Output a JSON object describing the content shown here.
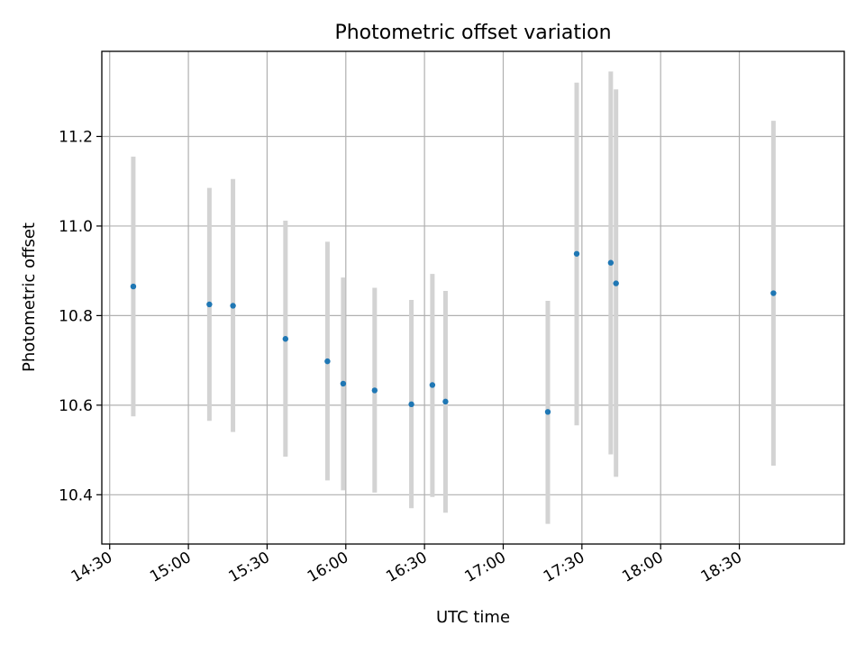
{
  "chart_data": {
    "type": "scatter",
    "title": "Photometric offset variation",
    "xlabel": "UTC time",
    "ylabel": "Photometric offset",
    "x_ticks": [
      "14:30",
      "15:00",
      "15:30",
      "16:00",
      "16:30",
      "17:00",
      "17:30",
      "18:00",
      "18:30"
    ],
    "y_ticks": [
      10.4,
      10.6,
      10.8,
      11.0,
      11.2
    ],
    "xlim": [
      "14:27",
      "19:10"
    ],
    "ylim": [
      10.29,
      11.39
    ],
    "grid": true,
    "error_bar_color": "#d3d3d3",
    "point_color": "#1f77b4",
    "points": [
      {
        "x": "14:39",
        "y": 10.865,
        "low": 10.575,
        "high": 11.155
      },
      {
        "x": "15:08",
        "y": 10.825,
        "low": 10.565,
        "high": 11.085
      },
      {
        "x": "15:17",
        "y": 10.822,
        "low": 10.54,
        "high": 11.105
      },
      {
        "x": "15:37",
        "y": 10.748,
        "low": 10.485,
        "high": 11.012
      },
      {
        "x": "15:53",
        "y": 10.698,
        "low": 10.432,
        "high": 10.965
      },
      {
        "x": "15:59",
        "y": 10.648,
        "low": 10.41,
        "high": 10.885
      },
      {
        "x": "16:11",
        "y": 10.633,
        "low": 10.405,
        "high": 10.862
      },
      {
        "x": "16:25",
        "y": 10.602,
        "low": 10.37,
        "high": 10.835
      },
      {
        "x": "16:33",
        "y": 10.645,
        "low": 10.395,
        "high": 10.893
      },
      {
        "x": "16:38",
        "y": 10.608,
        "low": 10.36,
        "high": 10.855
      },
      {
        "x": "17:17",
        "y": 10.585,
        "low": 10.335,
        "high": 10.833
      },
      {
        "x": "17:28",
        "y": 10.938,
        "low": 10.555,
        "high": 11.32
      },
      {
        "x": "17:41",
        "y": 10.918,
        "low": 10.49,
        "high": 11.345
      },
      {
        "x": "17:43",
        "y": 10.872,
        "low": 10.44,
        "high": 11.305
      },
      {
        "x": "18:43",
        "y": 10.85,
        "low": 10.465,
        "high": 11.235
      }
    ]
  }
}
